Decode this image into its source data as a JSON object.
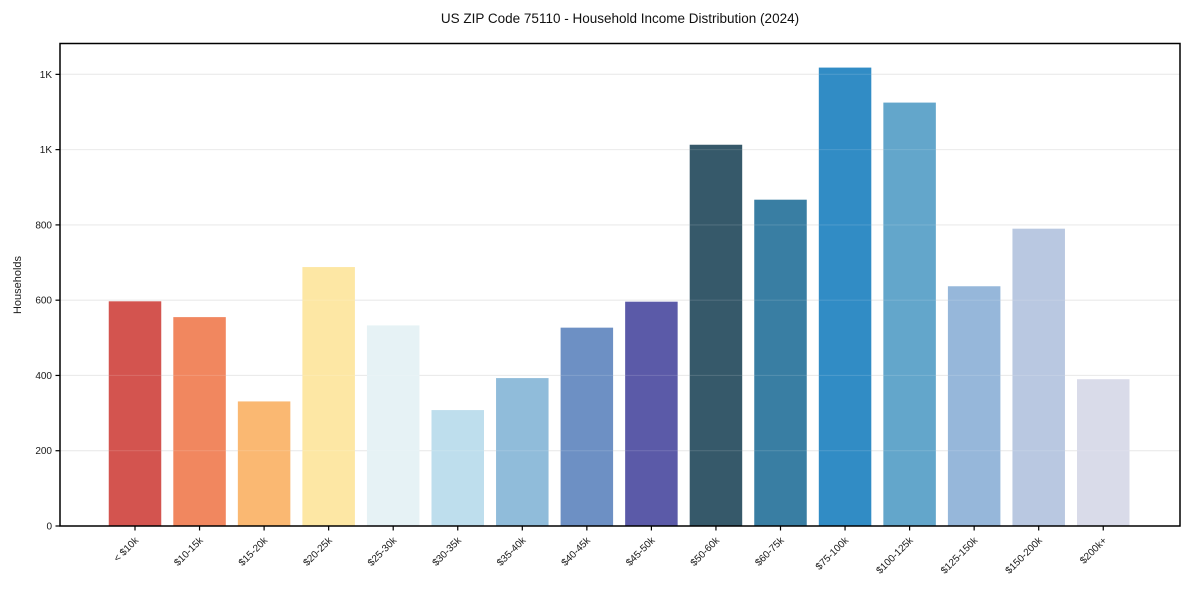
{
  "chart_data": {
    "type": "bar",
    "title": "US ZIP Code 75110 - Household Income Distribution (2024)",
    "xlabel": "",
    "ylabel": "Households",
    "categories": [
      "< $10k",
      "$10-15k",
      "$15-20k",
      "$20-25k",
      "$25-30k",
      "$30-35k",
      "$35-40k",
      "$40-45k",
      "$45-50k",
      "$50-60k",
      "$60-75k",
      "$75-100k",
      "$100-125k",
      "$125-150k",
      "$150-200k",
      "$200k+"
    ],
    "values": [
      597,
      555,
      331,
      688,
      533,
      308,
      393,
      527,
      596,
      1013,
      867,
      1218,
      1125,
      637,
      790,
      390
    ],
    "bar_colors": [
      "#d3544f",
      "#f1875f",
      "#fab872",
      "#fde7a4",
      "#e6f2f5",
      "#bedeed",
      "#90bcda",
      "#6d90c4",
      "#5b5aa8",
      "#36596a",
      "#397ea3",
      "#318cc5",
      "#63a6cb",
      "#96b7da",
      "#b9c8e1",
      "#d9dbe9"
    ],
    "ylim": [
      0,
      1282
    ],
    "yticks": [
      0,
      200,
      400,
      600,
      800,
      1000,
      1200
    ],
    "ytick_labels": [
      "0",
      "200",
      "400",
      "600",
      "800",
      "1K",
      "1K"
    ],
    "grid": "horizontal",
    "legend": "none",
    "styles": {
      "background": "#ffffff",
      "spine_color": "#000000",
      "grid_color": "#e8e8e8",
      "tick_color": "#000000",
      "text_color": "#1a1a1a"
    }
  }
}
